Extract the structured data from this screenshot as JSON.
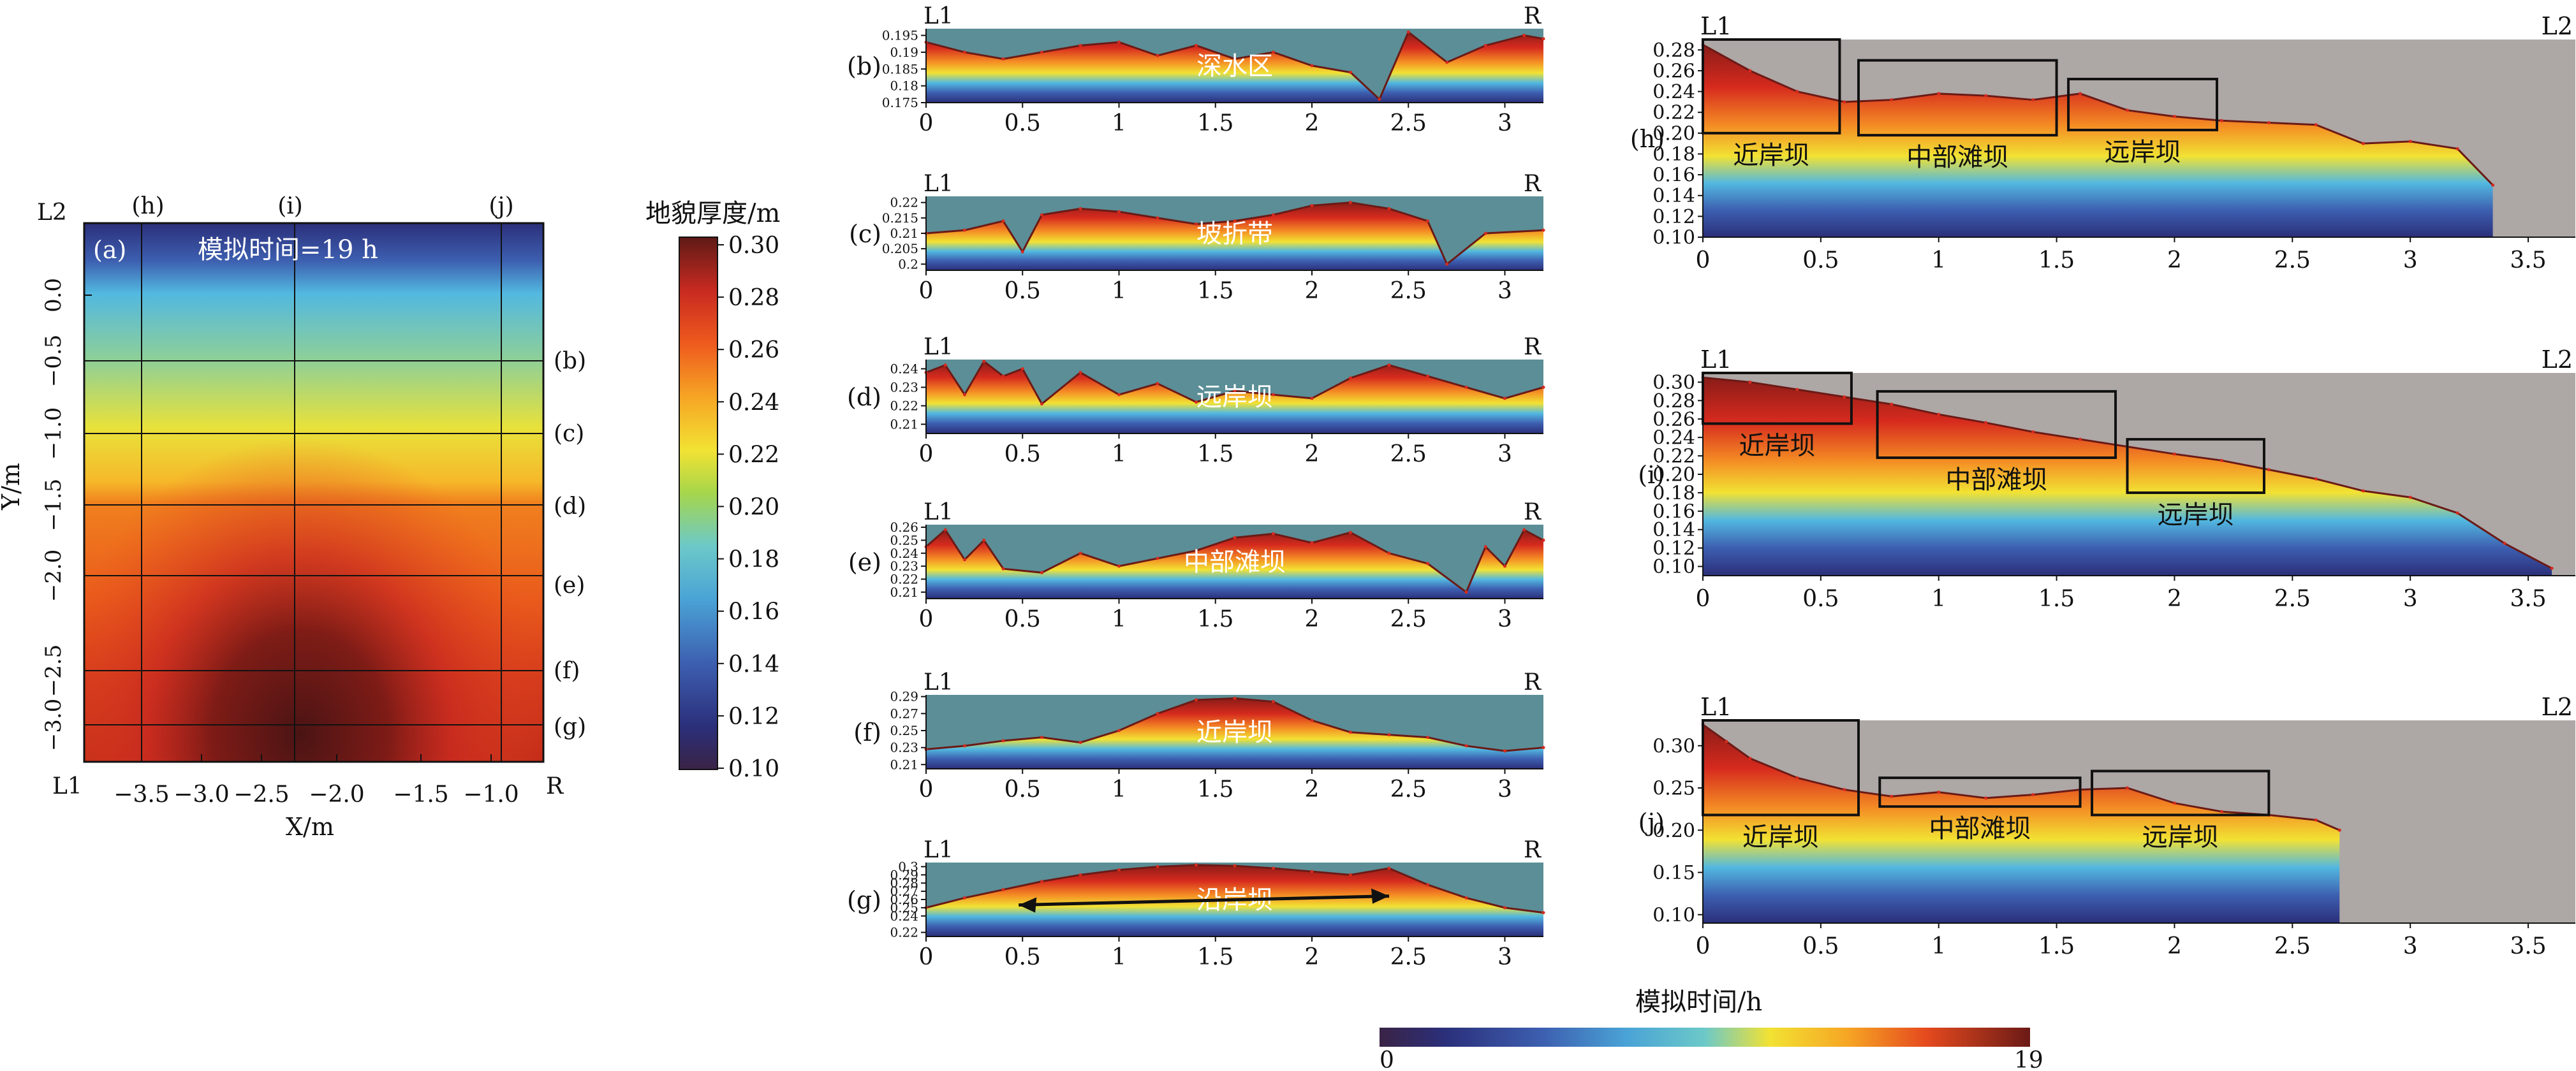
{
  "colors": {
    "deep_blue": "#2b2f7a",
    "blue": "#3d5fb0",
    "light_blue": "#52b8e0",
    "yellow": "#f2e233",
    "orange": "#f48c24",
    "red": "#d62a1e",
    "dark_red": "#6b1a16",
    "teal_bg": "#5b8e96",
    "gray_bg": "#ada7a5"
  },
  "map_panel": {
    "label": "(a)",
    "title": "模拟时间=19 h",
    "xlabel": "X/m",
    "ylabel": "Y/m",
    "x_ticks": [
      "−3.5",
      "−3.0",
      "−2.5",
      "−2.0",
      "−1.5",
      "−1.0"
    ],
    "y_ticks": [
      "0.0",
      "−0.5",
      "−1.0",
      "−1.5",
      "−2.0",
      "−2.5",
      "−3.0"
    ],
    "corner_top_left": "L2",
    "corner_bottom_left": "L1",
    "corner_bottom_right": "R",
    "section_labels_top": [
      "(h)",
      "(i)",
      "(j)"
    ],
    "section_labels_right": [
      "(b)",
      "(c)",
      "(d)",
      "(e)",
      "(f)",
      "(g)"
    ]
  },
  "colorbar_thickness": {
    "title": "地貌厚度/m",
    "ticks": [
      "0.30",
      "0.28",
      "0.26",
      "0.24",
      "0.22",
      "0.20",
      "0.18",
      "0.16",
      "0.14",
      "0.12",
      "0.10"
    ]
  },
  "colorbar_time": {
    "title": "模拟时间/h",
    "min_label": "0",
    "max_label": "19"
  },
  "chart_data": [
    {
      "type": "area",
      "panel": "(b)",
      "left_label": "L1",
      "right_label": "R",
      "annotation": "深水区",
      "x_ticks": [
        "0",
        "0.5",
        "1",
        "1.5",
        "2",
        "2.5",
        "3"
      ],
      "y_ticks": [
        "0.195",
        "0.19",
        "0.185",
        "0.18",
        "0.175"
      ],
      "ylim": [
        0.175,
        0.197
      ],
      "xlim": [
        0,
        3.2
      ],
      "x": [
        0,
        0.2,
        0.4,
        0.6,
        0.8,
        1.0,
        1.2,
        1.4,
        1.6,
        1.8,
        2.0,
        2.2,
        2.35,
        2.5,
        2.7,
        2.9,
        3.1,
        3.2
      ],
      "y": [
        0.193,
        0.19,
        0.188,
        0.19,
        0.192,
        0.193,
        0.189,
        0.192,
        0.188,
        0.19,
        0.186,
        0.184,
        0.176,
        0.196,
        0.187,
        0.192,
        0.195,
        0.194
      ]
    },
    {
      "type": "area",
      "panel": "(c)",
      "left_label": "L1",
      "right_label": "R",
      "annotation": "坡折带",
      "x_ticks": [
        "0",
        "0.5",
        "1",
        "1.5",
        "2",
        "2.5",
        "3"
      ],
      "y_ticks": [
        "0.22",
        "0.215",
        "0.21",
        "0.205",
        "0.2"
      ],
      "ylim": [
        0.198,
        0.222
      ],
      "xlim": [
        0,
        3.2
      ],
      "x": [
        0,
        0.2,
        0.4,
        0.5,
        0.6,
        0.8,
        1.0,
        1.2,
        1.4,
        1.6,
        1.8,
        2.0,
        2.2,
        2.4,
        2.6,
        2.7,
        2.9,
        3.2
      ],
      "y": [
        0.21,
        0.211,
        0.214,
        0.204,
        0.216,
        0.218,
        0.217,
        0.215,
        0.213,
        0.214,
        0.216,
        0.219,
        0.22,
        0.218,
        0.214,
        0.2,
        0.21,
        0.211
      ]
    },
    {
      "type": "area",
      "panel": "(d)",
      "left_label": "L1",
      "right_label": "R",
      "annotation": "远岸坝",
      "x_ticks": [
        "0",
        "0.5",
        "1",
        "1.5",
        "2",
        "2.5",
        "3"
      ],
      "y_ticks": [
        "0.24",
        "0.23",
        "0.22",
        "0.21"
      ],
      "ylim": [
        0.205,
        0.245
      ],
      "xlim": [
        0,
        3.2
      ],
      "x": [
        0,
        0.1,
        0.2,
        0.3,
        0.4,
        0.5,
        0.6,
        0.8,
        1.0,
        1.2,
        1.4,
        1.6,
        1.8,
        2.0,
        2.2,
        2.4,
        2.6,
        2.8,
        3.0,
        3.2
      ],
      "y": [
        0.238,
        0.242,
        0.226,
        0.244,
        0.236,
        0.24,
        0.221,
        0.238,
        0.226,
        0.232,
        0.222,
        0.228,
        0.226,
        0.224,
        0.235,
        0.242,
        0.236,
        0.23,
        0.224,
        0.23
      ]
    },
    {
      "type": "area",
      "panel": "(e)",
      "left_label": "L1",
      "right_label": "R",
      "annotation": "中部滩坝",
      "x_ticks": [
        "0",
        "0.5",
        "1",
        "1.5",
        "2",
        "2.5",
        "3"
      ],
      "y_ticks": [
        "0.26",
        "0.25",
        "0.24",
        "0.23",
        "0.22",
        "0.21"
      ],
      "ylim": [
        0.205,
        0.262
      ],
      "xlim": [
        0,
        3.2
      ],
      "x": [
        0,
        0.1,
        0.2,
        0.3,
        0.4,
        0.6,
        0.8,
        1.0,
        1.2,
        1.4,
        1.6,
        1.8,
        2.0,
        2.2,
        2.4,
        2.6,
        2.8,
        2.9,
        3.0,
        3.1,
        3.2
      ],
      "y": [
        0.245,
        0.258,
        0.235,
        0.25,
        0.228,
        0.225,
        0.24,
        0.23,
        0.236,
        0.242,
        0.252,
        0.255,
        0.248,
        0.256,
        0.24,
        0.232,
        0.21,
        0.245,
        0.23,
        0.258,
        0.25
      ]
    },
    {
      "type": "area",
      "panel": "(f)",
      "left_label": "L1",
      "right_label": "R",
      "annotation": "近岸坝",
      "x_ticks": [
        "0",
        "0.5",
        "1",
        "1.5",
        "2",
        "2.5",
        "3"
      ],
      "y_ticks": [
        "0.29",
        "0.27",
        "0.25",
        "0.23",
        "0.21"
      ],
      "ylim": [
        0.205,
        0.292
      ],
      "xlim": [
        0,
        3.2
      ],
      "x": [
        0,
        0.2,
        0.4,
        0.6,
        0.8,
        1.0,
        1.2,
        1.4,
        1.6,
        1.8,
        2.0,
        2.2,
        2.4,
        2.6,
        2.8,
        3.0,
        3.2
      ],
      "y": [
        0.228,
        0.232,
        0.238,
        0.242,
        0.236,
        0.25,
        0.27,
        0.286,
        0.288,
        0.284,
        0.262,
        0.248,
        0.245,
        0.242,
        0.232,
        0.226,
        0.23
      ]
    },
    {
      "type": "area",
      "panel": "(g)",
      "left_label": "L1",
      "right_label": "R",
      "annotation": "沿岸坝",
      "x_ticks": [
        "0",
        "0.5",
        "1",
        "1.5",
        "2",
        "2.5",
        "3"
      ],
      "y_ticks": [
        "0.3",
        "0.29",
        "0.28",
        "0.27",
        "0.26",
        "0.25",
        "0.24",
        "0.22"
      ],
      "ylim": [
        0.215,
        0.305
      ],
      "xlim": [
        0,
        3.2
      ],
      "x": [
        0,
        0.2,
        0.4,
        0.6,
        0.8,
        1.0,
        1.2,
        1.4,
        1.6,
        1.8,
        2.0,
        2.2,
        2.4,
        2.6,
        2.8,
        3.0,
        3.2
      ],
      "y": [
        0.25,
        0.262,
        0.272,
        0.282,
        0.29,
        0.296,
        0.3,
        0.302,
        0.301,
        0.298,
        0.294,
        0.29,
        0.298,
        0.278,
        0.262,
        0.25,
        0.244
      ]
    },
    {
      "type": "area",
      "panel": "(h)",
      "left_label": "L1",
      "right_label": "L2",
      "x_ticks": [
        "0",
        "0.5",
        "1",
        "1.5",
        "2",
        "2.5",
        "3",
        "3.5"
      ],
      "y_ticks": [
        "0.28",
        "0.26",
        "0.24",
        "0.22",
        "0.20",
        "0.18",
        "0.16",
        "0.14",
        "0.12",
        "0.10"
      ],
      "ylim": [
        0.1,
        0.29
      ],
      "xlim": [
        0,
        3.7
      ],
      "boxes": [
        "近岸坝",
        "中部滩坝",
        "远岸坝"
      ],
      "x": [
        0,
        0.2,
        0.4,
        0.6,
        0.8,
        1.0,
        1.2,
        1.4,
        1.6,
        1.8,
        2.0,
        2.2,
        2.4,
        2.6,
        2.8,
        3.0,
        3.2,
        3.35
      ],
      "y": [
        0.285,
        0.26,
        0.24,
        0.23,
        0.232,
        0.238,
        0.236,
        0.232,
        0.238,
        0.222,
        0.216,
        0.212,
        0.21,
        0.208,
        0.19,
        0.192,
        0.185,
        0.15
      ]
    },
    {
      "type": "area",
      "panel": "(i)",
      "left_label": "L1",
      "right_label": "L2",
      "x_ticks": [
        "0",
        "0.5",
        "1",
        "1.5",
        "2",
        "2.5",
        "3",
        "3.5"
      ],
      "y_ticks": [
        "0.30",
        "0.28",
        "0.26",
        "0.24",
        "0.22",
        "0.20",
        "0.18",
        "0.16",
        "0.14",
        "0.12",
        "0.10"
      ],
      "ylim": [
        0.09,
        0.31
      ],
      "xlim": [
        0,
        3.7
      ],
      "boxes": [
        "近岸坝",
        "中部滩坝",
        "远岸坝"
      ],
      "x": [
        0,
        0.2,
        0.4,
        0.6,
        0.8,
        1.0,
        1.2,
        1.4,
        1.6,
        1.8,
        2.0,
        2.2,
        2.4,
        2.6,
        2.8,
        3.0,
        3.2,
        3.4,
        3.6
      ],
      "y": [
        0.305,
        0.3,
        0.292,
        0.284,
        0.276,
        0.265,
        0.256,
        0.246,
        0.238,
        0.23,
        0.222,
        0.215,
        0.205,
        0.195,
        0.182,
        0.175,
        0.158,
        0.125,
        0.098
      ]
    },
    {
      "type": "area",
      "panel": "(j)",
      "left_label": "L1",
      "right_label": "L2",
      "x_ticks": [
        "0",
        "0.5",
        "1",
        "1.5",
        "2",
        "2.5",
        "3",
        "3.5"
      ],
      "y_ticks": [
        "0.30",
        "0.25",
        "0.20",
        "0.15",
        "0.10"
      ],
      "ylim": [
        0.09,
        0.33
      ],
      "xlim": [
        0,
        3.7
      ],
      "boxes": [
        "近岸坝",
        "中部滩坝",
        "远岸坝"
      ],
      "x": [
        0,
        0.1,
        0.2,
        0.4,
        0.6,
        0.8,
        1.0,
        1.2,
        1.4,
        1.6,
        1.8,
        2.0,
        2.2,
        2.4,
        2.6,
        2.7
      ],
      "y": [
        0.325,
        0.305,
        0.285,
        0.262,
        0.248,
        0.24,
        0.245,
        0.238,
        0.242,
        0.248,
        0.25,
        0.232,
        0.222,
        0.218,
        0.212,
        0.2
      ]
    }
  ]
}
